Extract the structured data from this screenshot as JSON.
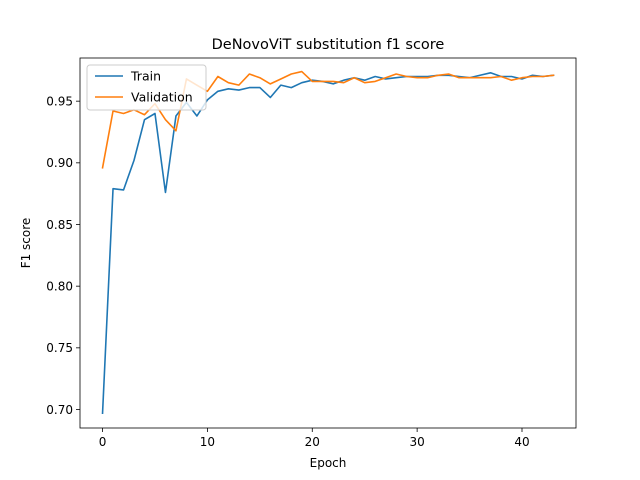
{
  "chart_data": {
    "type": "line",
    "title": "DeNovoViT substitution f1 score",
    "xlabel": "Epoch",
    "ylabel": "F1 score",
    "xlim": [
      -2.15,
      45.15
    ],
    "ylim": [
      0.685,
      0.985
    ],
    "xticks": [
      0,
      10,
      20,
      30,
      40
    ],
    "yticks": [
      0.7,
      0.75,
      0.8,
      0.85,
      0.9,
      0.95
    ],
    "ytick_labels": [
      "0.70",
      "0.75",
      "0.80",
      "0.85",
      "0.90",
      "0.95"
    ],
    "grid": false,
    "legend_position": "upper left",
    "x": [
      0,
      1,
      2,
      3,
      4,
      5,
      6,
      7,
      8,
      9,
      10,
      11,
      12,
      13,
      14,
      15,
      16,
      17,
      18,
      19,
      20,
      21,
      22,
      23,
      24,
      25,
      26,
      27,
      28,
      29,
      30,
      31,
      32,
      33,
      34,
      35,
      36,
      37,
      38,
      39,
      40,
      41,
      42,
      43
    ],
    "series": [
      {
        "name": "Train",
        "color": "#1f77b4",
        "values": [
          0.697,
          0.879,
          0.878,
          0.902,
          0.935,
          0.94,
          0.876,
          0.938,
          0.949,
          0.938,
          0.951,
          0.958,
          0.96,
          0.959,
          0.961,
          0.961,
          0.953,
          0.963,
          0.961,
          0.965,
          0.967,
          0.966,
          0.964,
          0.967,
          0.969,
          0.967,
          0.97,
          0.968,
          0.969,
          0.97,
          0.97,
          0.97,
          0.971,
          0.971,
          0.97,
          0.969,
          0.971,
          0.973,
          0.97,
          0.97,
          0.968,
          0.971,
          0.97,
          0.971
        ]
      },
      {
        "name": "Validation",
        "color": "#ff7f0e",
        "values": [
          0.896,
          0.942,
          0.94,
          0.943,
          0.939,
          0.948,
          0.935,
          0.926,
          0.968,
          0.963,
          0.958,
          0.97,
          0.965,
          0.963,
          0.972,
          0.969,
          0.964,
          0.968,
          0.972,
          0.974,
          0.966,
          0.966,
          0.966,
          0.965,
          0.969,
          0.965,
          0.966,
          0.969,
          0.972,
          0.97,
          0.969,
          0.969,
          0.971,
          0.972,
          0.969,
          0.969,
          0.969,
          0.969,
          0.97,
          0.967,
          0.969,
          0.97,
          0.97,
          0.971
        ]
      }
    ]
  }
}
